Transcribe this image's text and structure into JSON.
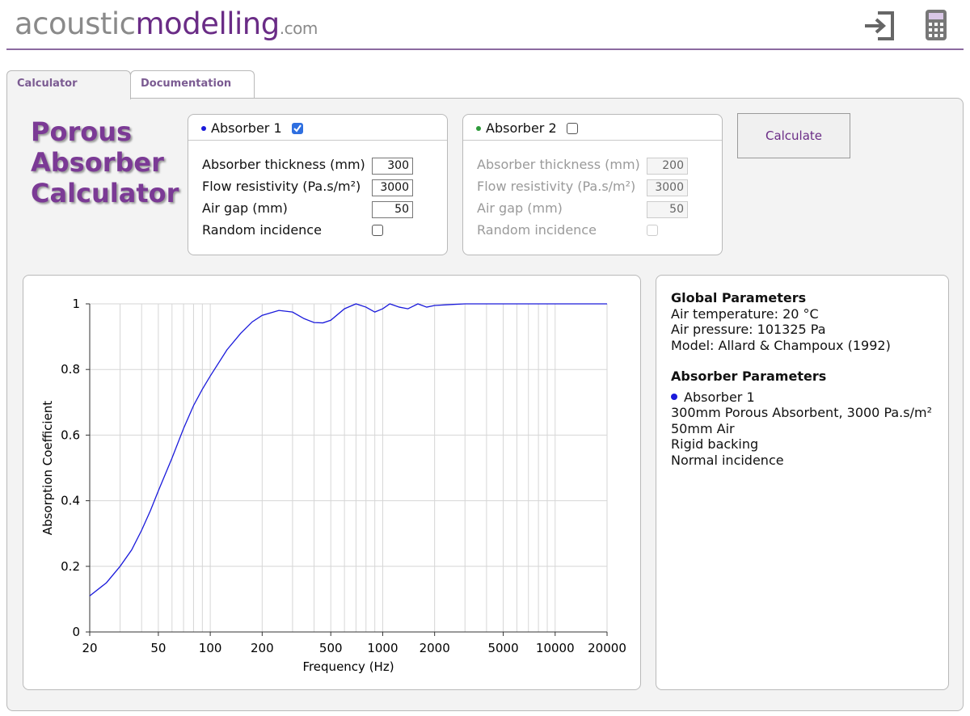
{
  "header": {
    "logo": [
      "acoustic",
      "modelling",
      ".com"
    ]
  },
  "tabs": [
    "Calculator",
    "Documentation"
  ],
  "title": [
    "Porous",
    "Absorber",
    "Calculator"
  ],
  "absorbers": [
    {
      "name": "Absorber 1",
      "color": "#1a1adb",
      "enabled": true,
      "fields": [
        {
          "label": "Absorber thickness (mm)",
          "value": 300
        },
        {
          "label": "Flow resistivity (Pa.s/m²)",
          "value": 3000
        },
        {
          "label": "Air gap (mm)",
          "value": 50
        }
      ],
      "random_incidence": {
        "label": "Random incidence",
        "checked": false
      }
    },
    {
      "name": "Absorber 2",
      "color": "#2e9a3a",
      "enabled": false,
      "fields": [
        {
          "label": "Absorber thickness (mm)",
          "value": 200
        },
        {
          "label": "Flow resistivity (Pa.s/m²)",
          "value": 3000
        },
        {
          "label": "Air gap (mm)",
          "value": 50
        }
      ],
      "random_incidence": {
        "label": "Random incidence",
        "checked": false
      }
    }
  ],
  "button": "Calculate",
  "info": {
    "global": {
      "heading": "Global Parameters",
      "lines": [
        "Air temperature: 20 °C",
        "Air pressure: 101325 Pa",
        "Model: Allard & Champoux (1992)"
      ]
    },
    "absorber": {
      "heading": "Absorber Parameters",
      "name": "Absorber 1",
      "lines": [
        "300mm Porous Absorbent, 3000 Pa.s/m²",
        "50mm Air",
        "Rigid backing",
        "Normal incidence"
      ]
    }
  },
  "chart_data": {
    "type": "line",
    "x_label": "Frequency (Hz)",
    "y_label": "Absorption Coefficient",
    "xscale": "log",
    "xlim": [
      20,
      20000
    ],
    "xticks": [
      20,
      50,
      100,
      200,
      500,
      1000,
      2000,
      5000,
      10000,
      20000
    ],
    "xminor": [
      30,
      40,
      60,
      70,
      80,
      90,
      300,
      400,
      600,
      700,
      800,
      900,
      3000,
      4000,
      6000,
      7000,
      8000,
      9000
    ],
    "ylim": [
      0,
      1
    ],
    "yticks": [
      0,
      0.2,
      0.4,
      0.6,
      0.8,
      1
    ],
    "grid": true,
    "color": "#1a1adb",
    "x": [
      20,
      25,
      30,
      35,
      40,
      45,
      50,
      60,
      70,
      80,
      90,
      100,
      125,
      150,
      175,
      200,
      250,
      300,
      350,
      400,
      450,
      500,
      600,
      700,
      800,
      900,
      1000,
      1100,
      1250,
      1400,
      1600,
      1800,
      2000,
      2500,
      3000,
      4000,
      6000,
      10000,
      20000
    ],
    "values": [
      0.11,
      0.15,
      0.2,
      0.25,
      0.31,
      0.37,
      0.43,
      0.53,
      0.62,
      0.69,
      0.74,
      0.78,
      0.86,
      0.91,
      0.945,
      0.965,
      0.98,
      0.975,
      0.955,
      0.943,
      0.942,
      0.95,
      0.985,
      1.0,
      0.99,
      0.975,
      0.985,
      1.0,
      0.99,
      0.985,
      1.0,
      0.99,
      0.995,
      0.998,
      1.0,
      1.0,
      1.0,
      1.0,
      1.0
    ]
  }
}
